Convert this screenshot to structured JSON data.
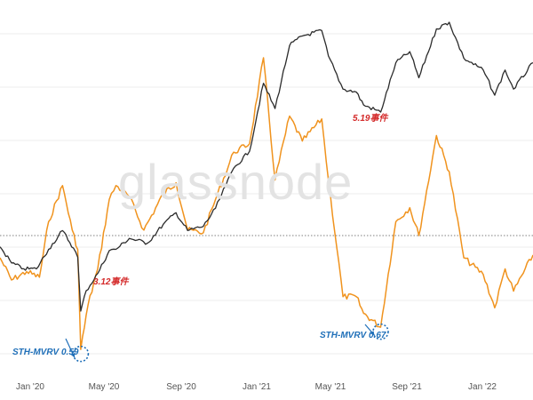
{
  "watermark": "glassnode",
  "colors": {
    "price_line": "#2b2b2b",
    "mvrv_line": "#f0931e",
    "event_text": "#d42a2a",
    "mvrv_text": "#1f6fb8",
    "grid": "#ececec",
    "reference_line": "#555555"
  },
  "chart_data": {
    "type": "line",
    "title": "",
    "x_ticks": [
      "Jan '20",
      "May '20",
      "Sep '20",
      "Jan '21",
      "May '21",
      "Sep '21",
      "Jan '22"
    ],
    "series": [
      {
        "key": "price",
        "color": "#2b2b2b",
        "points": [
          [
            "2019-11-01",
            8.8
          ],
          [
            "2019-11-20",
            7.6
          ],
          [
            "2019-12-10",
            7.2
          ],
          [
            "2019-12-31",
            7.2
          ],
          [
            "2020-01-20",
            8.6
          ],
          [
            "2020-02-12",
            10.2
          ],
          [
            "2020-03-01",
            8.7
          ],
          [
            "2020-03-08",
            8.0
          ],
          [
            "2020-03-13",
            4.9
          ],
          [
            "2020-03-22",
            5.9
          ],
          [
            "2020-04-10",
            6.9
          ],
          [
            "2020-04-29",
            8.5
          ],
          [
            "2020-05-10",
            8.6
          ],
          [
            "2020-06-01",
            9.5
          ],
          [
            "2020-07-01",
            9.1
          ],
          [
            "2020-07-27",
            10.8
          ],
          [
            "2020-08-17",
            12.0
          ],
          [
            "2020-09-05",
            10.2
          ],
          [
            "2020-10-01",
            10.6
          ],
          [
            "2020-10-21",
            12.5
          ],
          [
            "2020-11-20",
            18.0
          ],
          [
            "2020-12-16",
            21.0
          ],
          [
            "2021-01-08",
            39.0
          ],
          [
            "2021-01-27",
            31.0
          ],
          [
            "2021-02-20",
            55.0
          ],
          [
            "2021-03-13",
            60.0
          ],
          [
            "2021-04-14",
            63.0
          ],
          [
            "2021-04-25",
            50.0
          ],
          [
            "2021-05-19",
            37.0
          ],
          [
            "2021-06-10",
            36.0
          ],
          [
            "2021-06-22",
            32.0
          ],
          [
            "2021-07-20",
            30.0
          ],
          [
            "2021-08-14",
            47.0
          ],
          [
            "2021-09-06",
            52.0
          ],
          [
            "2021-09-21",
            41.0
          ],
          [
            "2021-10-20",
            64.0
          ],
          [
            "2021-11-10",
            68.0
          ],
          [
            "2021-12-04",
            49.0
          ],
          [
            "2022-01-05",
            44.0
          ],
          [
            "2022-01-24",
            35.0
          ],
          [
            "2022-02-10",
            44.0
          ],
          [
            "2022-02-24",
            37.0
          ],
          [
            "2022-03-28",
            47.0
          ]
        ]
      },
      {
        "key": "sth_mvrv",
        "color": "#f0931e",
        "points": [
          [
            "2019-11-01",
            0.92
          ],
          [
            "2019-11-20",
            0.84
          ],
          [
            "2019-12-15",
            0.87
          ],
          [
            "2020-01-05",
            0.85
          ],
          [
            "2020-01-20",
            1.05
          ],
          [
            "2020-02-12",
            1.18
          ],
          [
            "2020-02-28",
            1.02
          ],
          [
            "2020-03-08",
            0.95
          ],
          [
            "2020-03-13",
            0.59
          ],
          [
            "2020-03-25",
            0.75
          ],
          [
            "2020-04-10",
            0.88
          ],
          [
            "2020-04-29",
            1.13
          ],
          [
            "2020-05-10",
            1.18
          ],
          [
            "2020-06-01",
            1.14
          ],
          [
            "2020-06-25",
            1.02
          ],
          [
            "2020-07-27",
            1.15
          ],
          [
            "2020-08-17",
            1.19
          ],
          [
            "2020-09-05",
            1.02
          ],
          [
            "2020-10-01",
            1.01
          ],
          [
            "2020-10-21",
            1.13
          ],
          [
            "2020-11-20",
            1.3
          ],
          [
            "2020-12-16",
            1.33
          ],
          [
            "2021-01-08",
            1.64
          ],
          [
            "2021-01-27",
            1.2
          ],
          [
            "2021-02-20",
            1.43
          ],
          [
            "2021-03-13",
            1.34
          ],
          [
            "2021-04-14",
            1.42
          ],
          [
            "2021-04-25",
            1.2
          ],
          [
            "2021-05-19",
            0.78
          ],
          [
            "2021-06-10",
            0.78
          ],
          [
            "2021-06-22",
            0.72
          ],
          [
            "2021-07-20",
            0.67
          ],
          [
            "2021-08-14",
            1.05
          ],
          [
            "2021-09-06",
            1.1
          ],
          [
            "2021-09-21",
            1.0
          ],
          [
            "2021-10-20",
            1.36
          ],
          [
            "2021-11-10",
            1.23
          ],
          [
            "2021-12-04",
            0.92
          ],
          [
            "2022-01-05",
            0.86
          ],
          [
            "2022-01-24",
            0.74
          ],
          [
            "2022-02-10",
            0.88
          ],
          [
            "2022-02-24",
            0.8
          ],
          [
            "2022-03-28",
            0.93
          ]
        ]
      }
    ],
    "reference_line": {
      "value": 1.0,
      "style": "dotted"
    },
    "annotations": [
      {
        "text": "3.12事件",
        "date": "2020-03-12",
        "kind": "event"
      },
      {
        "text": "5.19事件",
        "date": "2021-05-19",
        "kind": "event"
      },
      {
        "text": "STH-MVRV 0.59",
        "date": "2020-03-13",
        "kind": "mvrv"
      },
      {
        "text": "STH-MVRV 0.67",
        "date": "2021-07-20",
        "kind": "mvrv"
      }
    ],
    "grid": true,
    "legend": "none"
  }
}
